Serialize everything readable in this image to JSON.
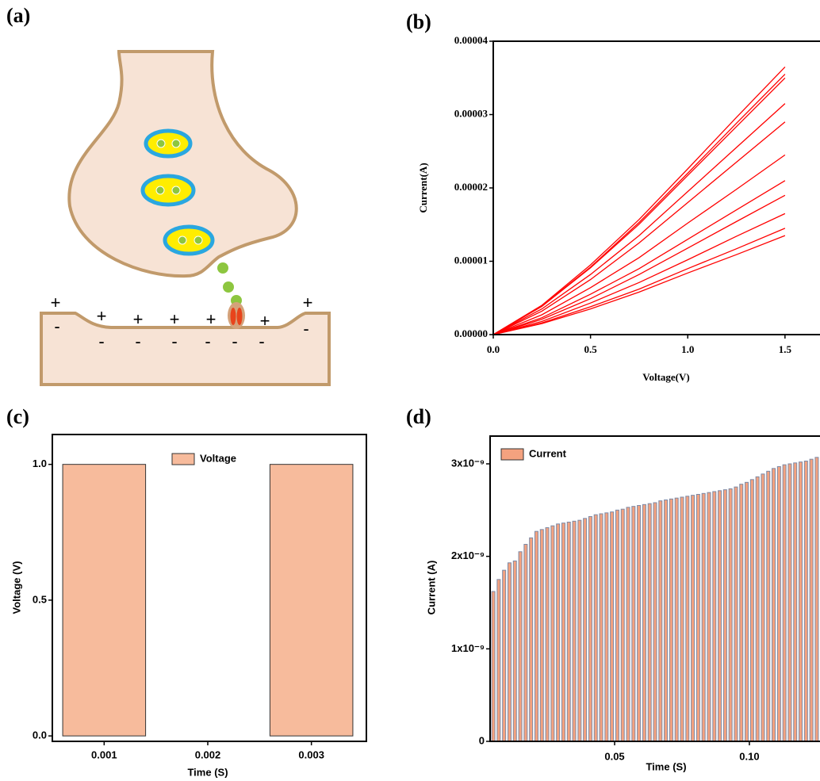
{
  "panels": [
    "(a)",
    "(b)",
    "(c)",
    "(d)"
  ],
  "diagram": {
    "signs": [
      "+",
      "-",
      "+",
      "-",
      "+",
      "-",
      "+",
      "-",
      "+",
      "-",
      "-",
      "+",
      "-",
      "+",
      "-"
    ]
  },
  "chart_data": [
    {
      "type": "line",
      "x_label": "Voltage(V)",
      "y_label": "Current(A)",
      "x": [
        0,
        0.25,
        0.5,
        0.75,
        1.0,
        1.25,
        1.5
      ],
      "series": [
        {
          "color": "#ff0000",
          "values": [
            0,
            4e-06,
            9.5e-06,
            1.57e-05,
            2.26e-05,
            2.96e-05,
            3.65e-05
          ]
        },
        {
          "color": "#ff0000",
          "values": [
            0,
            3.9e-06,
            9.2e-06,
            1.53e-05,
            2.2e-05,
            2.88e-05,
            3.55e-05
          ]
        },
        {
          "color": "#ff0000",
          "values": [
            0,
            3.85e-06,
            9.1e-06,
            1.505e-05,
            2.17e-05,
            2.835e-05,
            3.5e-05
          ]
        },
        {
          "color": "#ff0000",
          "values": [
            0,
            3.5e-06,
            8.2e-06,
            1.35e-05,
            1.95e-05,
            2.55e-05,
            3.15e-05
          ]
        },
        {
          "color": "#ff0000",
          "values": [
            0,
            3.2e-06,
            7.5e-06,
            1.25e-05,
            1.8e-05,
            2.35e-05,
            2.9e-05
          ]
        },
        {
          "color": "#ff0000",
          "values": [
            0,
            2.7e-06,
            6.4e-06,
            1.05e-05,
            1.52e-05,
            1.98e-05,
            2.45e-05
          ]
        },
        {
          "color": "#ff0000",
          "values": [
            0,
            2.3e-06,
            5.5e-06,
            9e-06,
            1.3e-05,
            1.7e-05,
            2.1e-05
          ]
        },
        {
          "color": "#ff0000",
          "values": [
            0,
            2.1e-06,
            4.9e-06,
            8.2e-06,
            1.18e-05,
            1.54e-05,
            1.9e-05
          ]
        },
        {
          "color": "#ff0000",
          "values": [
            0,
            1.8e-06,
            4.3e-06,
            7.1e-06,
            1.02e-05,
            1.34e-05,
            1.65e-05
          ]
        },
        {
          "color": "#ff0000",
          "values": [
            0,
            1.6e-06,
            3.8e-06,
            6.2e-06,
            9e-06,
            1.17e-05,
            1.45e-05
          ]
        },
        {
          "color": "#ff0000",
          "values": [
            0,
            1.5e-06,
            3.5e-06,
            5.8e-06,
            8.4e-06,
            1.09e-05,
            1.35e-05
          ]
        }
      ],
      "xlim": [
        0,
        1.68
      ],
      "xticks": [
        {
          "value": 0,
          "label": "0.0"
        },
        0.5,
        {
          "value": 1.0,
          "label": "1.0"
        },
        1.5
      ],
      "ylim": [
        0,
        4e-05
      ],
      "yticks": [
        {
          "value": 0,
          "label": "0.00000"
        },
        {
          "value": 1e-05,
          "label": "0.00001"
        },
        {
          "value": 2e-05,
          "label": "0.00002"
        },
        {
          "value": 3e-05,
          "label": "0.00003"
        },
        {
          "value": 4e-05,
          "label": "0.00004"
        }
      ]
    },
    {
      "type": "bar",
      "x_label": "Time (S)",
      "y_label": "Voltage (V)",
      "categories": [
        "0.001",
        "0.002",
        "0.003"
      ],
      "series": [
        {
          "name": "Voltage",
          "color": "#f7bb9c",
          "values": [
            1,
            0,
            1
          ]
        }
      ],
      "ylim": [
        -0.02,
        1.11
      ],
      "yticks": [
        {
          "value": 0,
          "label": "0.0"
        },
        0.5,
        {
          "value": 1,
          "label": "1.0"
        }
      ]
    },
    {
      "type": "histbar",
      "x_label": "Time (S)",
      "y_label": "Current (A)",
      "x": [
        0.005,
        0.007,
        0.009,
        0.011,
        0.013,
        0.015,
        0.017,
        0.019,
        0.021,
        0.023,
        0.025,
        0.027,
        0.029,
        0.031,
        0.033,
        0.035,
        0.037,
        0.039,
        0.041,
        0.043,
        0.045,
        0.047,
        0.049,
        0.051,
        0.053,
        0.055,
        0.057,
        0.059,
        0.061,
        0.063,
        0.065,
        0.067,
        0.069,
        0.071,
        0.073,
        0.075,
        0.077,
        0.079,
        0.081,
        0.083,
        0.085,
        0.087,
        0.089,
        0.091,
        0.093,
        0.095,
        0.097,
        0.099,
        0.101,
        0.103,
        0.105,
        0.107,
        0.109,
        0.111,
        0.113,
        0.115,
        0.117,
        0.119,
        0.121,
        0.123,
        0.125
      ],
      "series": [
        {
          "name": "Current",
          "color": "#f4a27f",
          "values": [
            1.62e-09,
            1.75e-09,
            1.85e-09,
            1.93e-09,
            1.95e-09,
            2.05e-09,
            2.13e-09,
            2.2e-09,
            2.27e-09,
            2.29e-09,
            2.31e-09,
            2.33e-09,
            2.35e-09,
            2.36e-09,
            2.37e-09,
            2.38e-09,
            2.39e-09,
            2.41e-09,
            2.43e-09,
            2.45e-09,
            2.46e-09,
            2.47e-09,
            2.48e-09,
            2.5e-09,
            2.51e-09,
            2.53e-09,
            2.54e-09,
            2.55e-09,
            2.56e-09,
            2.57e-09,
            2.58e-09,
            2.6e-09,
            2.61e-09,
            2.62e-09,
            2.63e-09,
            2.64e-09,
            2.65e-09,
            2.66e-09,
            2.67e-09,
            2.68e-09,
            2.69e-09,
            2.7e-09,
            2.71e-09,
            2.72e-09,
            2.73e-09,
            2.75e-09,
            2.78e-09,
            2.8e-09,
            2.83e-09,
            2.86e-09,
            2.89e-09,
            2.92e-09,
            2.95e-09,
            2.97e-09,
            2.99e-09,
            3e-09,
            3.01e-09,
            3.02e-09,
            3.03e-09,
            3.05e-09,
            3.07e-09
          ]
        }
      ],
      "xlim": [
        0.0038,
        0.1262
      ],
      "xticks": [
        0.05,
        {
          "value": 0.1,
          "label": "0.10"
        }
      ],
      "ylim": [
        0,
        3.3e-09
      ],
      "yticks": [
        0,
        {
          "value": 1e-09,
          "label": "1x10⁻⁹"
        },
        {
          "value": 2e-09,
          "label": "2x10⁻⁹"
        },
        {
          "value": 3e-09,
          "label": "3x10⁻⁹"
        }
      ]
    }
  ]
}
